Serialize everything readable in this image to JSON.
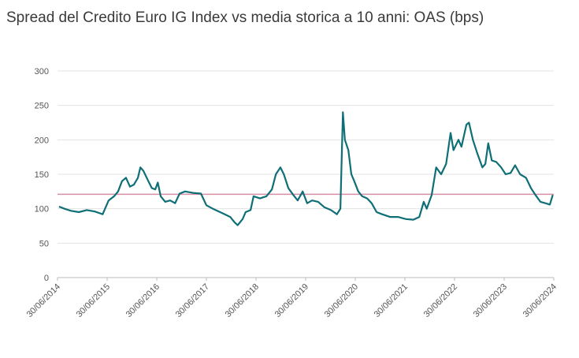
{
  "chart_data": {
    "type": "line",
    "title": "Spread del Credito Euro IG Index vs media storica a 10 anni: OAS (bps)",
    "xlim": [
      2014.5,
      2024.5
    ],
    "xticks": [
      {
        "value": 2014.5,
        "label": "30/06/2014"
      },
      {
        "value": 2015.5,
        "label": "30/06/2015"
      },
      {
        "value": 2016.5,
        "label": "30/06/2016"
      },
      {
        "value": 2017.5,
        "label": "30/06/2017"
      },
      {
        "value": 2018.5,
        "label": "30/06/2018"
      },
      {
        "value": 2019.5,
        "label": "30/06/2019"
      },
      {
        "value": 2020.5,
        "label": "30/06/2020"
      },
      {
        "value": 2021.5,
        "label": "30/06/2021"
      },
      {
        "value": 2022.5,
        "label": "30/06/2022"
      },
      {
        "value": 2023.5,
        "label": "30/06/2023"
      },
      {
        "value": 2024.5,
        "label": "30/06/2024"
      }
    ],
    "ylim": [
      0,
      300
    ],
    "yticks": [
      0,
      50,
      100,
      150,
      200,
      250,
      300
    ],
    "grid": true,
    "reference_line": {
      "value": 121,
      "color": "#d88ea4"
    },
    "series": [
      {
        "color": "#0f6f76",
        "x": [
          2014.53,
          2014.64,
          2014.77,
          2014.93,
          2015.09,
          2015.25,
          2015.41,
          2015.53,
          2015.64,
          2015.72,
          2015.8,
          2015.88,
          2015.96,
          2016.04,
          2016.12,
          2016.17,
          2016.23,
          2016.33,
          2016.4,
          2016.47,
          2016.52,
          2016.58,
          2016.67,
          2016.77,
          2016.87,
          2016.96,
          2017.07,
          2017.23,
          2017.39,
          2017.5,
          2017.63,
          2017.75,
          2017.87,
          2017.98,
          2018.07,
          2018.13,
          2018.23,
          2018.29,
          2018.39,
          2018.45,
          2018.58,
          2018.71,
          2018.82,
          2018.9,
          2018.99,
          2019.06,
          2019.15,
          2019.25,
          2019.34,
          2019.44,
          2019.53,
          2019.63,
          2019.75,
          2019.88,
          2020.01,
          2020.13,
          2020.2,
          2020.25,
          2020.29,
          2020.36,
          2020.42,
          2020.48,
          2020.56,
          2020.64,
          2020.74,
          2020.83,
          2020.93,
          2021.04,
          2021.2,
          2021.36,
          2021.52,
          2021.67,
          2021.79,
          2021.88,
          2021.94,
          2022.04,
          2022.13,
          2022.23,
          2022.33,
          2022.42,
          2022.48,
          2022.58,
          2022.64,
          2022.74,
          2022.79,
          2022.87,
          2022.96,
          2023.06,
          2023.12,
          2023.18,
          2023.25,
          2023.34,
          2023.44,
          2023.53,
          2023.63,
          2023.72,
          2023.82,
          2023.94,
          2024.04,
          2024.13,
          2024.23,
          2024.33,
          2024.42,
          2024.48
        ],
        "values": [
          103,
          100,
          97,
          95,
          98,
          96,
          92,
          112,
          118,
          125,
          140,
          145,
          132,
          135,
          145,
          160,
          155,
          140,
          130,
          128,
          138,
          118,
          110,
          112,
          108,
          122,
          125,
          123,
          122,
          105,
          100,
          96,
          92,
          88,
          80,
          76,
          85,
          95,
          98,
          118,
          115,
          118,
          128,
          150,
          160,
          150,
          130,
          120,
          112,
          125,
          108,
          112,
          110,
          102,
          98,
          92,
          100,
          240,
          200,
          185,
          150,
          140,
          125,
          118,
          115,
          108,
          95,
          92,
          88,
          88,
          85,
          84,
          88,
          110,
          100,
          120,
          160,
          150,
          165,
          210,
          185,
          200,
          190,
          222,
          225,
          200,
          180,
          160,
          165,
          195,
          170,
          168,
          160,
          150,
          152,
          163,
          150,
          145,
          130,
          120,
          110,
          108,
          106,
          120
        ]
      }
    ]
  }
}
